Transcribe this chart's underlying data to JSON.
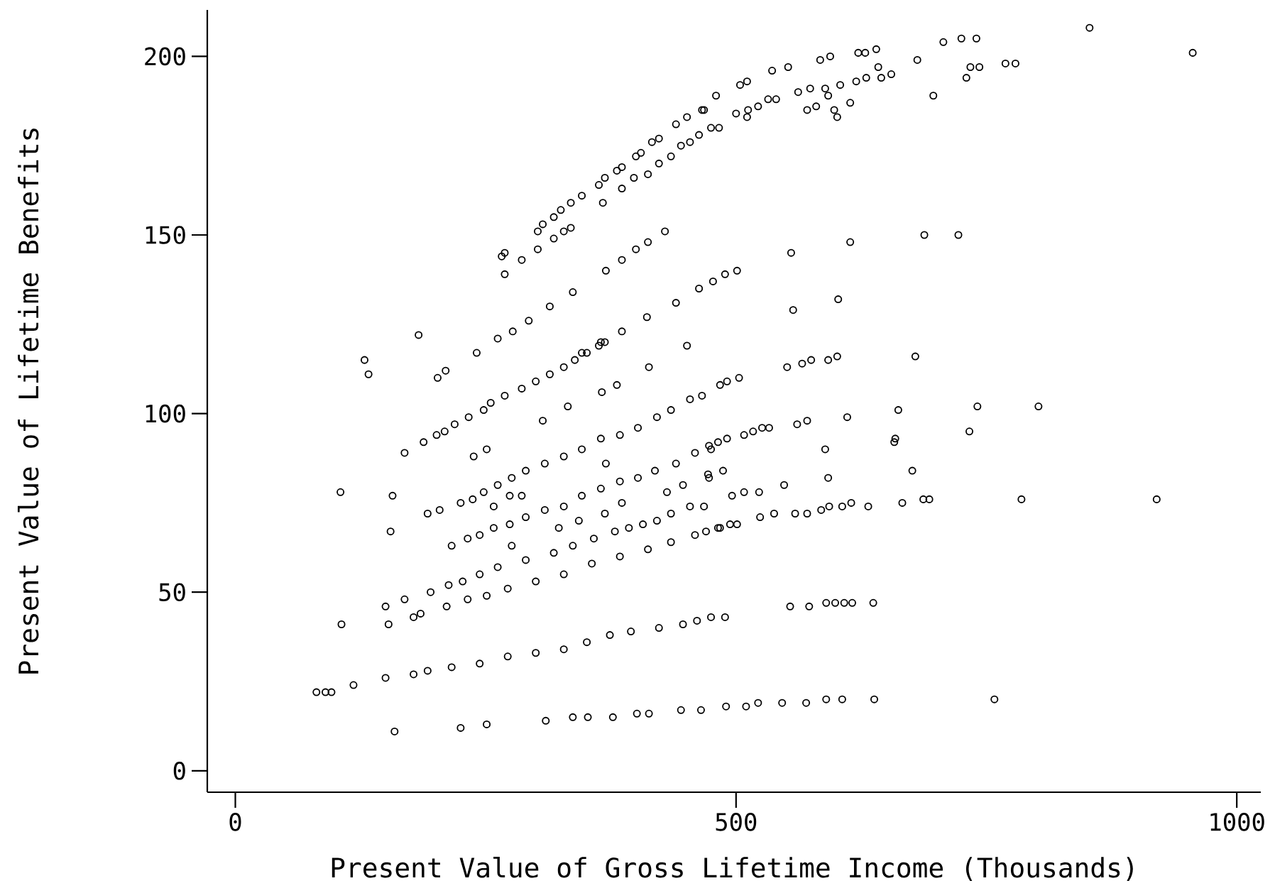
{
  "chart_data": {
    "type": "scatter",
    "xlabel": "Present Value of Gross Lifetime Income (Thousands)",
    "ylabel": "Present Value of Lifetime Benefits",
    "xlim": [
      -28,
      1024
    ],
    "ylim": [
      -6,
      213
    ],
    "xticks": [
      0,
      500,
      1000
    ],
    "yticks": [
      0,
      50,
      100,
      150,
      200
    ],
    "marker": "circle",
    "color": "#000000",
    "x": [
      269,
      266,
      286,
      302,
      302,
      307,
      318,
      325,
      335,
      346,
      363,
      369,
      381,
      386,
      400,
      405,
      416,
      423,
      440,
      451,
      466,
      480,
      269,
      318,
      328,
      335,
      367,
      386,
      398,
      412,
      423,
      435,
      445,
      454,
      463,
      475,
      483,
      183,
      241,
      262,
      277,
      293,
      314,
      337,
      370,
      386,
      400,
      412,
      429,
      346,
      365,
      386,
      411,
      440,
      451,
      463,
      477,
      489,
      504,
      511,
      536,
      552,
      584,
      594,
      622,
      629,
      640,
      681,
      707,
      725,
      740,
      853,
      956,
      468,
      500,
      511,
      512,
      522,
      532,
      540,
      562,
      574,
      571,
      580,
      589,
      592,
      598,
      601,
      604,
      614,
      620,
      630,
      642,
      645,
      655,
      697,
      730,
      734,
      743,
      769,
      779,
      501,
      555,
      614,
      688,
      722,
      557,
      602,
      129,
      133,
      202,
      210,
      169,
      188,
      201,
      209,
      219,
      233,
      248,
      255,
      269,
      286,
      300,
      314,
      328,
      339,
      351,
      363,
      369,
      413,
      366,
      381,
      332,
      307,
      238,
      251,
      192,
      204,
      225,
      237,
      248,
      262,
      276,
      290,
      309,
      328,
      346,
      365,
      384,
      402,
      421,
      435,
      454,
      466,
      484,
      491,
      370,
      258,
      274,
      286,
      105,
      157,
      155,
      106,
      153,
      216,
      232,
      244,
      258,
      274,
      290,
      309,
      328,
      346,
      365,
      384,
      402,
      419,
      440,
      459,
      475,
      491,
      276,
      323,
      343,
      369,
      386,
      431,
      447,
      472,
      487,
      150,
      169,
      195,
      213,
      227,
      244,
      262,
      290,
      318,
      337,
      358,
      379,
      393,
      407,
      421,
      435,
      454,
      468,
      178,
      185,
      211,
      232,
      251,
      272,
      300,
      328,
      356,
      384,
      412,
      435,
      459,
      482,
      494,
      90,
      118,
      150,
      178,
      192,
      216,
      244,
      272,
      300,
      328,
      351,
      374,
      395,
      423,
      447,
      461,
      475,
      489,
      81,
      96,
      551,
      566,
      575,
      592,
      601,
      503,
      679,
      561,
      571,
      508,
      517,
      526,
      533,
      473,
      482,
      611,
      662,
      741,
      802,
      733,
      589,
      659,
      658,
      676,
      592,
      473,
      496,
      508,
      523,
      548,
      785,
      920,
      470,
      484,
      501,
      524,
      538,
      559,
      571,
      585,
      593,
      606,
      615,
      632,
      666,
      687,
      693,
      554,
      573,
      590,
      599,
      608,
      616,
      637,
      159,
      225,
      251,
      310,
      337,
      352,
      377,
      401,
      413,
      445,
      465,
      490,
      510,
      522,
      546,
      570,
      590,
      606,
      638,
      758
    ],
    "values": [
      145,
      144,
      143,
      146,
      151,
      153,
      155,
      157,
      159,
      161,
      164,
      166,
      168,
      169,
      172,
      173,
      176,
      177,
      181,
      183,
      185,
      189,
      139,
      149,
      151,
      152,
      159,
      163,
      166,
      167,
      170,
      172,
      175,
      176,
      178,
      180,
      180,
      122,
      117,
      121,
      123,
      126,
      130,
      134,
      140,
      143,
      146,
      148,
      151,
      117,
      120,
      123,
      127,
      131,
      119,
      135,
      137,
      139,
      192,
      193,
      196,
      197,
      199,
      200,
      201,
      201,
      202,
      199,
      204,
      205,
      205,
      208,
      201,
      185,
      184,
      183,
      185,
      186,
      188,
      188,
      190,
      191,
      185,
      186,
      191,
      189,
      185,
      183,
      192,
      187,
      193,
      194,
      197,
      194,
      195,
      189,
      194,
      197,
      197,
      198,
      198,
      140,
      145,
      148,
      150,
      150,
      129,
      132,
      115,
      111,
      110,
      112,
      89,
      92,
      94,
      95,
      97,
      99,
      101,
      103,
      105,
      107,
      109,
      111,
      113,
      115,
      117,
      119,
      120,
      113,
      106,
      108,
      102,
      98,
      88,
      90,
      72,
      73,
      75,
      76,
      78,
      80,
      82,
      84,
      86,
      88,
      90,
      93,
      94,
      96,
      99,
      101,
      104,
      105,
      108,
      109,
      86,
      74,
      77,
      77,
      78,
      77,
      67,
      41,
      41,
      63,
      65,
      66,
      68,
      69,
      71,
      73,
      74,
      77,
      79,
      81,
      82,
      84,
      86,
      89,
      90,
      93,
      63,
      68,
      70,
      72,
      75,
      78,
      80,
      83,
      84,
      46,
      48,
      50,
      52,
      53,
      55,
      57,
      59,
      61,
      63,
      65,
      67,
      68,
      69,
      70,
      72,
      74,
      74,
      43,
      44,
      46,
      48,
      49,
      51,
      53,
      55,
      58,
      60,
      62,
      64,
      66,
      68,
      69,
      22,
      24,
      26,
      27,
      28,
      29,
      30,
      32,
      33,
      34,
      36,
      38,
      39,
      40,
      41,
      42,
      43,
      43,
      22,
      22,
      113,
      114,
      115,
      115,
      116,
      110,
      116,
      97,
      98,
      94,
      95,
      96,
      96,
      91,
      92,
      99,
      101,
      102,
      102,
      95,
      90,
      93,
      92,
      84,
      82,
      82,
      77,
      78,
      78,
      80,
      76,
      76,
      67,
      68,
      69,
      71,
      72,
      72,
      72,
      73,
      74,
      74,
      75,
      74,
      75,
      76,
      76,
      46,
      46,
      47,
      47,
      47,
      47,
      47,
      11,
      12,
      13,
      14,
      15,
      15,
      15,
      16,
      16,
      17,
      17,
      18,
      18,
      19,
      19,
      19,
      20,
      20,
      20,
      20
    ]
  }
}
